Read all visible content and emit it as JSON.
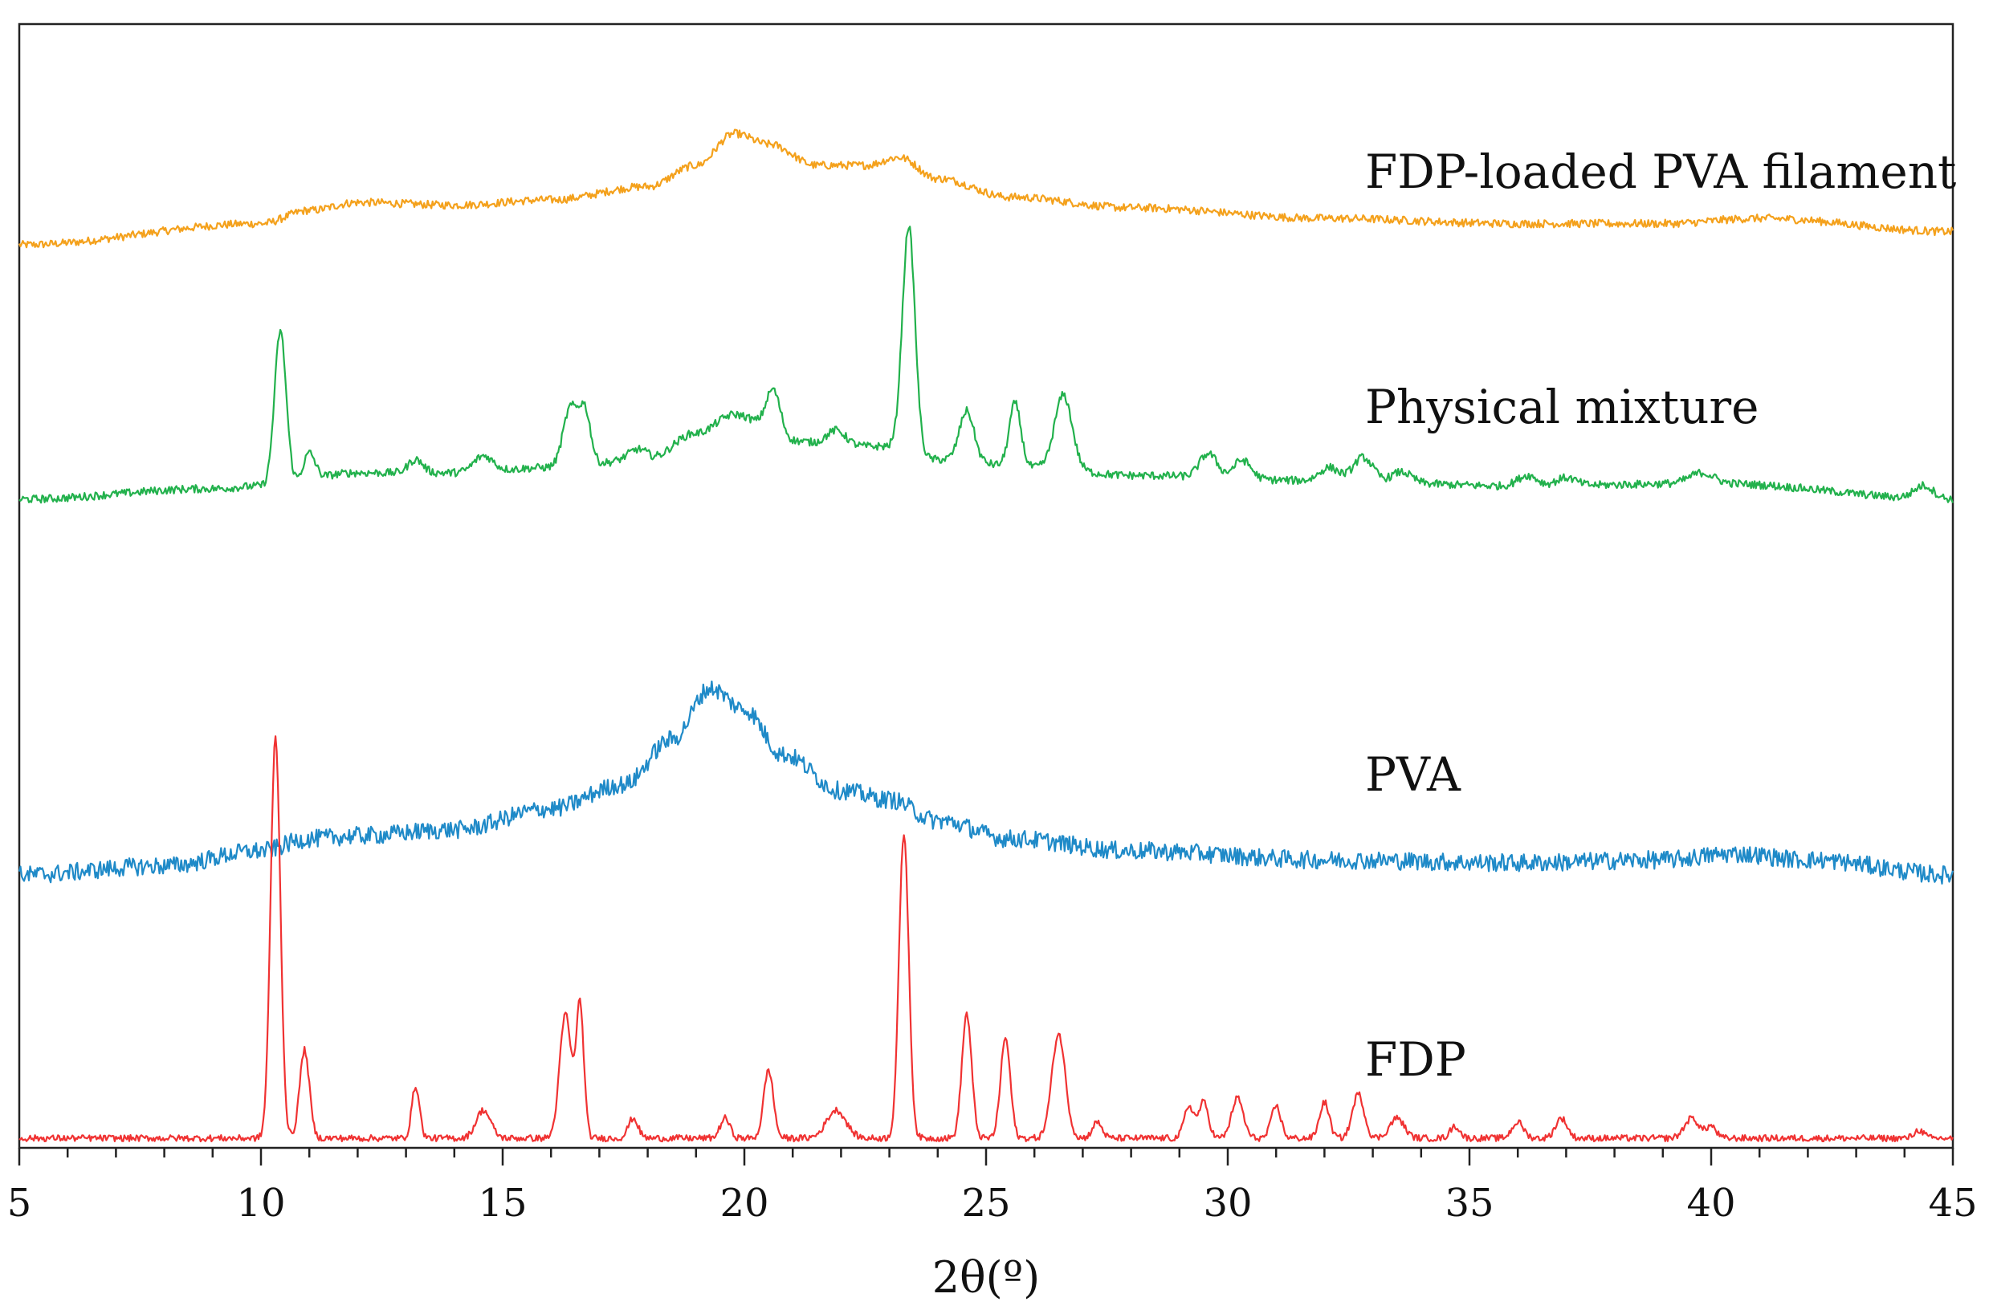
{
  "chart_data": {
    "type": "line",
    "title": "",
    "xlabel": "2θ(º)",
    "ylabel": "",
    "xlim": [
      5,
      45
    ],
    "x_major_ticks": [
      5,
      10,
      15,
      20,
      25,
      30,
      35,
      40,
      45
    ],
    "x_tick_labels": [
      "5",
      "10",
      "15",
      "20",
      "25",
      "30",
      "35",
      "40",
      "45"
    ],
    "y_units": "relative intensity (arbitrary, normalized 0-1 per pattern)",
    "grid": false,
    "legend": "inline labels at right",
    "series": [
      {
        "name": "FDP-loaded PVA filament",
        "color": "#f4a11c",
        "baseline": [
          [
            5,
            0.0
          ],
          [
            10,
            0.08
          ],
          [
            11,
            0.13
          ],
          [
            12,
            0.16
          ],
          [
            14,
            0.15
          ],
          [
            16,
            0.17
          ],
          [
            18,
            0.22
          ],
          [
            19,
            0.3
          ],
          [
            19.8,
            0.42
          ],
          [
            20.5,
            0.38
          ],
          [
            21.5,
            0.3
          ],
          [
            22.5,
            0.3
          ],
          [
            23.2,
            0.33
          ],
          [
            24,
            0.25
          ],
          [
            25.5,
            0.18
          ],
          [
            28,
            0.14
          ],
          [
            32,
            0.1
          ],
          [
            36,
            0.08
          ],
          [
            39,
            0.08
          ],
          [
            41,
            0.1
          ],
          [
            45,
            0.05
          ]
        ],
        "peaks": [],
        "noise": 0.015
      },
      {
        "name": "Physical mixture",
        "color": "#22b14c",
        "baseline": [
          [
            5,
            0.0
          ],
          [
            9,
            0.04
          ],
          [
            10,
            0.05
          ],
          [
            12,
            0.1
          ],
          [
            14,
            0.1
          ],
          [
            16,
            0.12
          ],
          [
            18,
            0.15
          ],
          [
            19,
            0.25
          ],
          [
            19.8,
            0.32
          ],
          [
            21,
            0.22
          ],
          [
            22,
            0.2
          ],
          [
            23,
            0.2
          ],
          [
            24,
            0.15
          ],
          [
            26,
            0.12
          ],
          [
            28,
            0.09
          ],
          [
            32,
            0.07
          ],
          [
            36,
            0.05
          ],
          [
            40,
            0.06
          ],
          [
            45,
            0.0
          ]
        ],
        "peaks": [
          [
            10.4,
            0.58,
            0.12
          ],
          [
            11.0,
            0.1,
            0.12
          ],
          [
            13.2,
            0.05,
            0.15
          ],
          [
            14.6,
            0.06,
            0.2
          ],
          [
            16.4,
            0.22,
            0.15
          ],
          [
            16.7,
            0.2,
            0.12
          ],
          [
            17.8,
            0.04,
            0.2
          ],
          [
            20.6,
            0.17,
            0.15
          ],
          [
            21.9,
            0.06,
            0.2
          ],
          [
            23.4,
            0.85,
            0.13
          ],
          [
            24.6,
            0.19,
            0.15
          ],
          [
            25.6,
            0.24,
            0.12
          ],
          [
            26.6,
            0.28,
            0.18
          ],
          [
            29.6,
            0.09,
            0.18
          ],
          [
            30.3,
            0.07,
            0.18
          ],
          [
            32.1,
            0.05,
            0.2
          ],
          [
            32.8,
            0.09,
            0.2
          ],
          [
            33.6,
            0.04,
            0.2
          ],
          [
            36.2,
            0.04,
            0.2
          ],
          [
            37.0,
            0.03,
            0.2
          ],
          [
            39.8,
            0.04,
            0.25
          ],
          [
            44.4,
            0.05,
            0.2
          ]
        ],
        "noise": 0.015
      },
      {
        "name": "PVA",
        "color": "#1f8ac8",
        "baseline": [
          [
            5,
            0.0
          ],
          [
            8,
            0.03
          ],
          [
            10,
            0.08
          ],
          [
            11,
            0.12
          ],
          [
            12,
            0.13
          ],
          [
            14,
            0.15
          ],
          [
            16,
            0.22
          ],
          [
            17.5,
            0.3
          ],
          [
            18.5,
            0.45
          ],
          [
            19.3,
            0.62
          ],
          [
            20,
            0.55
          ],
          [
            20.8,
            0.4
          ],
          [
            22,
            0.28
          ],
          [
            23,
            0.25
          ],
          [
            24,
            0.18
          ],
          [
            25.5,
            0.12
          ],
          [
            28,
            0.08
          ],
          [
            32,
            0.05
          ],
          [
            36,
            0.04
          ],
          [
            39,
            0.05
          ],
          [
            40.5,
            0.07
          ],
          [
            42,
            0.05
          ],
          [
            45,
            0.0
          ]
        ],
        "peaks": [],
        "noise": 0.03
      },
      {
        "name": "FDP",
        "color": "#f03232",
        "baseline": [
          [
            5,
            0.0
          ],
          [
            45,
            0.0
          ]
        ],
        "peaks": [
          [
            10.3,
            1.0,
            0.1
          ],
          [
            10.9,
            0.22,
            0.1
          ],
          [
            13.2,
            0.13,
            0.08
          ],
          [
            14.6,
            0.07,
            0.15
          ],
          [
            16.3,
            0.31,
            0.12
          ],
          [
            16.6,
            0.33,
            0.08
          ],
          [
            17.7,
            0.05,
            0.1
          ],
          [
            19.6,
            0.05,
            0.1
          ],
          [
            20.5,
            0.17,
            0.1
          ],
          [
            21.9,
            0.07,
            0.2
          ],
          [
            23.3,
            0.76,
            0.1
          ],
          [
            24.6,
            0.31,
            0.1
          ],
          [
            25.4,
            0.25,
            0.1
          ],
          [
            26.5,
            0.26,
            0.14
          ],
          [
            27.3,
            0.04,
            0.1
          ],
          [
            29.2,
            0.08,
            0.1
          ],
          [
            29.5,
            0.09,
            0.1
          ],
          [
            30.2,
            0.1,
            0.12
          ],
          [
            31.0,
            0.08,
            0.1
          ],
          [
            32.0,
            0.09,
            0.1
          ],
          [
            32.7,
            0.11,
            0.12
          ],
          [
            33.5,
            0.05,
            0.15
          ],
          [
            34.7,
            0.03,
            0.1
          ],
          [
            36.0,
            0.04,
            0.12
          ],
          [
            36.9,
            0.05,
            0.12
          ],
          [
            39.6,
            0.05,
            0.15
          ],
          [
            40.0,
            0.03,
            0.1
          ],
          [
            44.3,
            0.02,
            0.1
          ]
        ],
        "noise": 0.008
      }
    ]
  }
}
